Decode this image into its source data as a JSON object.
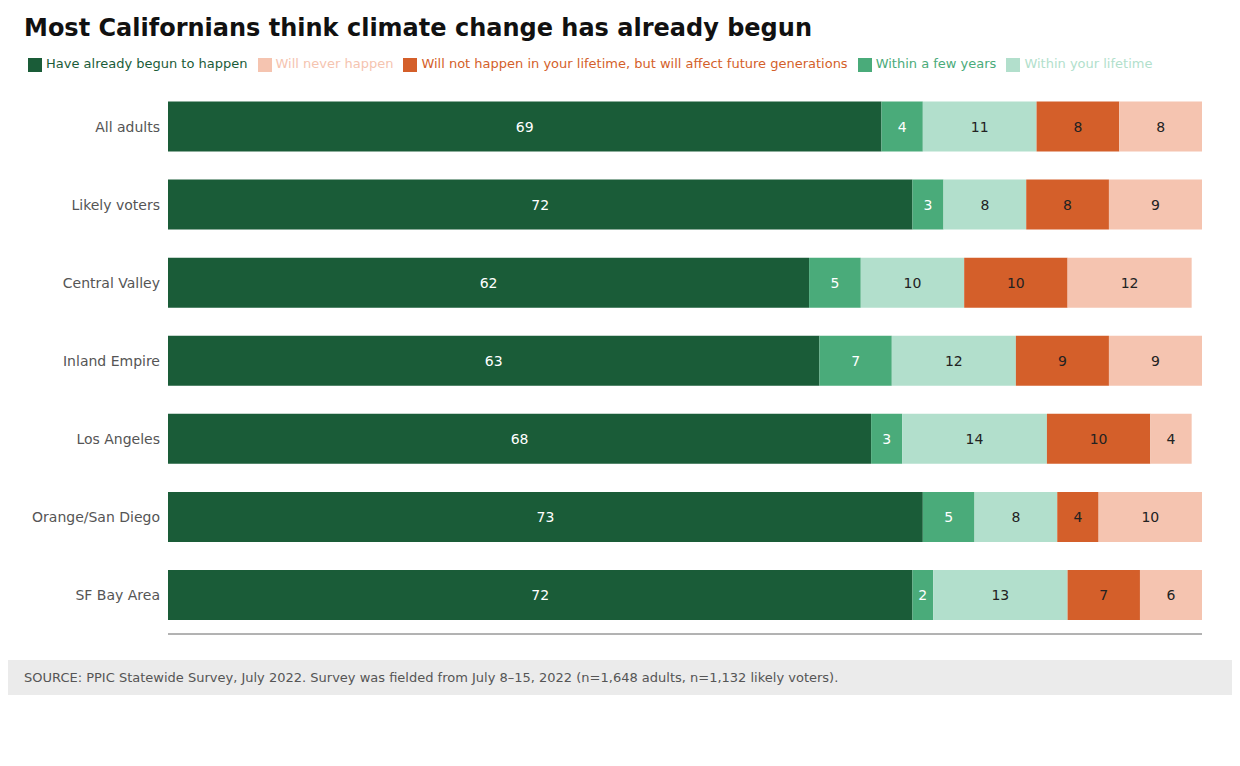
{
  "chart_data": {
    "type": "bar",
    "title": "Most Californians think climate change has already begun",
    "orientation": "horizontal",
    "stacked": true,
    "data_labels": true,
    "grid": false,
    "legend": "top",
    "tick_labels": "y",
    "xlim": [
      0,
      100
    ],
    "categories": [
      "All adults",
      "Likely voters",
      "Central Valley",
      "Inland Empire",
      "Los Angeles",
      "Orange/San Diego",
      "SF Bay Area"
    ],
    "series": [
      {
        "name": "Have already begun to happen",
        "color": "#1a5c38",
        "values": [
          69,
          72,
          62,
          63,
          68,
          73,
          72
        ]
      },
      {
        "name": "Within a few years",
        "color": "#4aab7a",
        "values": [
          4,
          3,
          5,
          7,
          3,
          5,
          2
        ]
      },
      {
        "name": "Within your lifetime",
        "color": "#b2dfcc",
        "values": [
          11,
          8,
          10,
          12,
          14,
          8,
          13
        ]
      },
      {
        "name": "Will not happen in your lifetime, but will affect future generations",
        "color": "#d45f2a",
        "values": [
          8,
          8,
          10,
          9,
          10,
          4,
          7
        ]
      },
      {
        "name": "Will never happen",
        "color": "#f5c4b0",
        "values": [
          8,
          9,
          12,
          9,
          4,
          10,
          6
        ]
      }
    ],
    "annotations": [
      "SOURCE: PPIC Statewide Survey, July 2022. Survey was fielded from July 8–15, 2022 (n=1,648 adults, n=1,132 likely voters)."
    ]
  }
}
